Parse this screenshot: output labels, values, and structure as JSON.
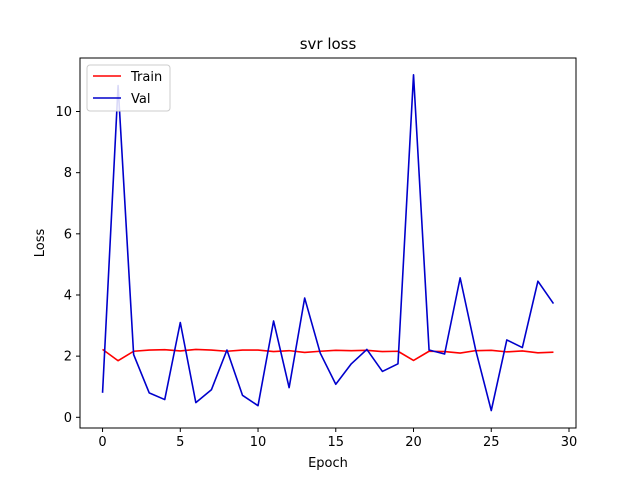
{
  "chart_data": {
    "type": "line",
    "title": "svr loss",
    "xlabel": "Epoch",
    "ylabel": "Loss",
    "xlim": [
      -1.45,
      30.45
    ],
    "ylim": [
      -0.35,
      11.75
    ],
    "xticks": [
      0,
      5,
      10,
      15,
      20,
      25,
      30
    ],
    "xtick_labels": [
      "0",
      "5",
      "10",
      "15",
      "20",
      "25",
      "30"
    ],
    "yticks": [
      0,
      2,
      4,
      6,
      8,
      10
    ],
    "ytick_labels": [
      "0",
      "2",
      "4",
      "6",
      "8",
      "10"
    ],
    "grid": false,
    "legend_position": "top-left",
    "x": [
      0,
      1,
      2,
      3,
      4,
      5,
      6,
      7,
      8,
      9,
      10,
      11,
      12,
      13,
      14,
      15,
      16,
      17,
      18,
      19,
      20,
      21,
      22,
      23,
      24,
      25,
      26,
      27,
      28,
      29
    ],
    "series": [
      {
        "name": "Train",
        "color": "#ff0000",
        "values": [
          2.22,
          1.85,
          2.16,
          2.2,
          2.21,
          2.17,
          2.22,
          2.2,
          2.16,
          2.2,
          2.2,
          2.15,
          2.18,
          2.12,
          2.16,
          2.19,
          2.18,
          2.19,
          2.15,
          2.16,
          1.86,
          2.16,
          2.15,
          2.1,
          2.18,
          2.19,
          2.14,
          2.17,
          2.11,
          2.13
        ]
      },
      {
        "name": "Val",
        "color": "#0000cc",
        "values": [
          0.8,
          10.85,
          2.05,
          0.8,
          0.58,
          3.1,
          0.48,
          0.9,
          2.2,
          0.72,
          0.38,
          3.15,
          0.97,
          3.9,
          2.1,
          1.08,
          1.75,
          2.22,
          1.5,
          1.75,
          11.2,
          2.2,
          2.07,
          4.56,
          2.2,
          0.22,
          2.53,
          2.28,
          4.45,
          3.72
        ]
      }
    ]
  }
}
